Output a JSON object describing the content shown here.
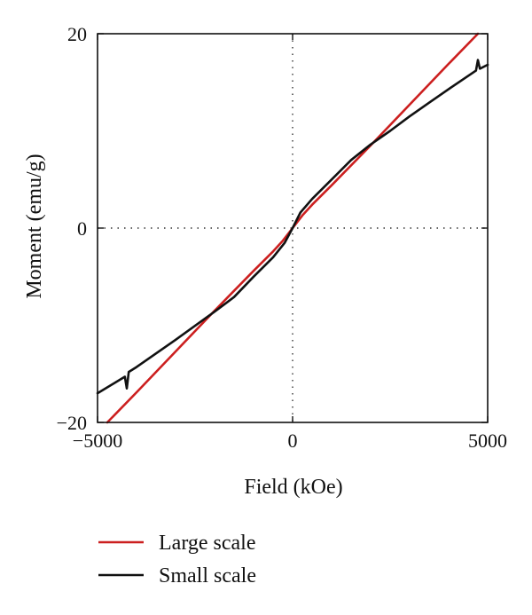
{
  "chart_data": {
    "type": "line",
    "xlabel": "Field (kOe)",
    "ylabel": "Moment (emu/g)",
    "xlim": [
      -5000,
      5000
    ],
    "ylim": [
      -20,
      20
    ],
    "xticks": [
      -5000,
      0,
      5000
    ],
    "xtick_labels": [
      "−5000",
      "0",
      "5000"
    ],
    "yticks": [
      -20,
      0,
      20
    ],
    "ytick_labels": [
      "−20",
      "0",
      "20"
    ],
    "grid": "dotted zero lines",
    "legend_position": "bottom-left, below plot",
    "series": [
      {
        "name": "Large scale",
        "color": "#cc1f1f",
        "x": [
          -4750,
          -4000,
          -3000,
          -2000,
          -1000,
          -500,
          -250,
          0,
          250,
          500,
          1000,
          2000,
          3000,
          4000,
          4750
        ],
        "y": [
          -20,
          -16.9,
          -12.7,
          -8.5,
          -4.4,
          -2.4,
          -1.3,
          0,
          1.3,
          2.4,
          4.4,
          8.5,
          12.7,
          16.9,
          20
        ]
      },
      {
        "name": "Small scale",
        "color": "#111111",
        "x": [
          -5000,
          -4300,
          -4250,
          -4200,
          -4000,
          -3000,
          -2000,
          -1500,
          -1000,
          -500,
          -200,
          0,
          200,
          500,
          1000,
          1500,
          2000,
          2500,
          3000,
          3500,
          4000,
          4700,
          4750,
          4800,
          5000
        ],
        "y": [
          -17,
          -15.3,
          -16.5,
          -14.8,
          -14.3,
          -11.5,
          -8.6,
          -7.1,
          -5.0,
          -3.0,
          -1.5,
          0,
          1.6,
          3.0,
          5.0,
          7.0,
          8.6,
          10.0,
          11.5,
          12.9,
          14.3,
          16.2,
          17.3,
          16.4,
          16.8
        ]
      }
    ]
  }
}
